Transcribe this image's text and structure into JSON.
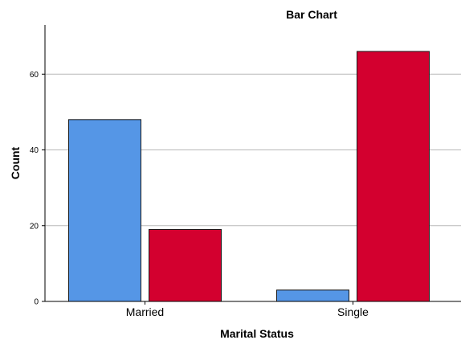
{
  "chart_data": {
    "type": "bar",
    "title": "Bar Chart",
    "xlabel": "Marital Status",
    "ylabel": "Count",
    "categories": [
      "Married",
      "Single"
    ],
    "series": [
      {
        "values": [
          48,
          3
        ],
        "color": "#5596e6"
      },
      {
        "values": [
          19,
          66
        ],
        "color": "#d3002f"
      }
    ],
    "ylim": [
      0,
      73
    ],
    "yticks": [
      0,
      20,
      40,
      60
    ],
    "grid": true,
    "legend": "none"
  }
}
